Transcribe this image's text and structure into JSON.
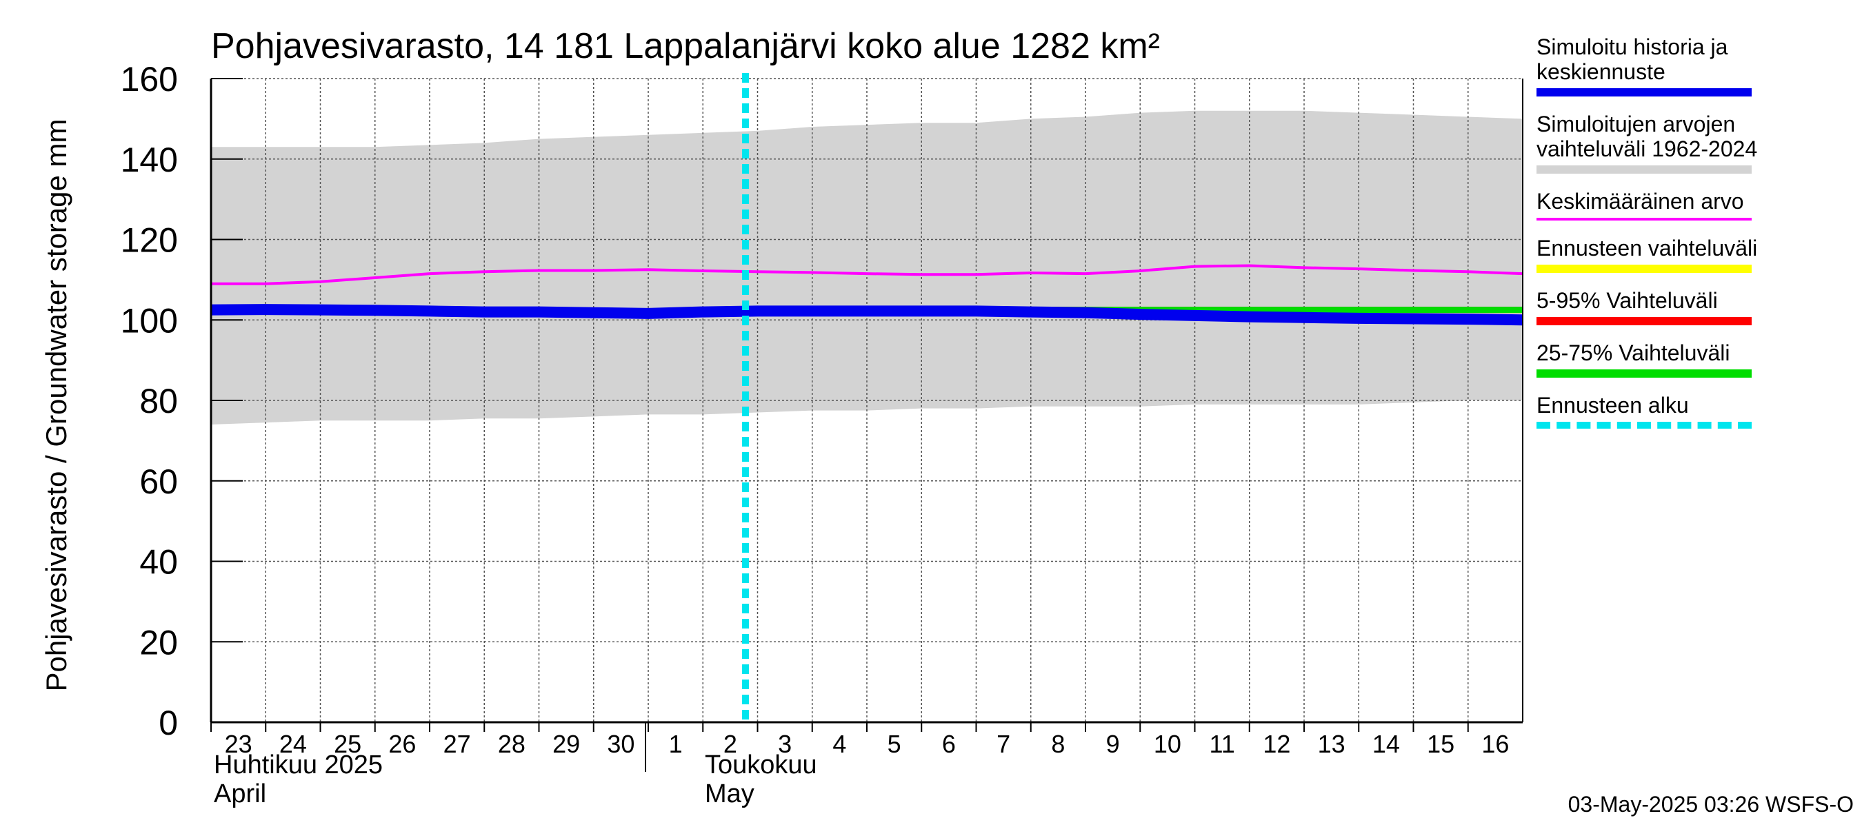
{
  "chart_data": {
    "type": "area",
    "title": "Pohjavesivarasto, 14 181 Lappalanjärvi koko alue 1282 km²",
    "ylabel": "Pohjavesivarasto / Groundwater storage   mm",
    "ylim": [
      0,
      160
    ],
    "yticks": [
      "0",
      "20",
      "40",
      "60",
      "80",
      "100",
      "120",
      "140",
      "160"
    ],
    "x": [
      "2025-04-23",
      "2025-04-24",
      "2025-04-25",
      "2025-04-26",
      "2025-04-27",
      "2025-04-28",
      "2025-04-29",
      "2025-04-30",
      "2025-05-01",
      "2025-05-02",
      "2025-05-03",
      "2025-05-04",
      "2025-05-05",
      "2025-05-06",
      "2025-05-07",
      "2025-05-08",
      "2025-05-09",
      "2025-05-10",
      "2025-05-11",
      "2025-05-12",
      "2025-05-13",
      "2025-05-14",
      "2025-05-15",
      "2025-05-16",
      "2025-05-17"
    ],
    "xticks": [
      "23",
      "24",
      "25",
      "26",
      "27",
      "28",
      "29",
      "30",
      "1",
      "2",
      "3",
      "4",
      "5",
      "6",
      "7",
      "8",
      "9",
      "10",
      "11",
      "12",
      "13",
      "14",
      "15",
      "16"
    ],
    "month_labels": [
      {
        "fi": "Huhtikuu  2025",
        "en": "April"
      },
      {
        "fi": "Toukokuu",
        "en": "May"
      }
    ],
    "forecast_start": "2025-05-03",
    "grid": true,
    "legend_placement": "right",
    "series": [
      {
        "name": "Simuloitujen arvojen\nvaihteluväli 1962-2024",
        "kind": "band",
        "color": "#d3d3d3",
        "upper": [
          143,
          143,
          143,
          143,
          143.5,
          144,
          145,
          145.5,
          146,
          146.5,
          147,
          148,
          148.5,
          149,
          149,
          150,
          150.5,
          151.5,
          152,
          152,
          152,
          151.5,
          151,
          150.5,
          150
        ],
        "lower": [
          74,
          74.5,
          75,
          75,
          75,
          75.5,
          75.5,
          76,
          76.5,
          76.5,
          77,
          77.5,
          77.5,
          78,
          78,
          78.5,
          78.5,
          78.5,
          79,
          79,
          79,
          79,
          79.5,
          80,
          80
        ]
      },
      {
        "name": "Keskimääräinen arvo",
        "kind": "line",
        "color": "#ff00ff",
        "values": [
          109,
          109,
          109.5,
          110.5,
          111.5,
          112,
          112.3,
          112.3,
          112.5,
          112.2,
          112,
          111.8,
          111.5,
          111.3,
          111.3,
          111.7,
          111.5,
          112.2,
          113.3,
          113.5,
          113,
          112.7,
          112.3,
          112,
          111.5
        ]
      },
      {
        "name": "Ennusteen vaihteluväli",
        "kind": "line",
        "color": "#ffff00",
        "from_index": 10,
        "values": [
          102.5,
          102.5,
          102.5,
          102.5,
          102.5,
          102.5,
          102.5,
          102.5,
          102.5,
          102.5,
          102.5,
          102.5,
          102.5,
          102.5,
          102.5,
          102.5,
          102.5,
          102.3,
          102,
          101.8,
          101.8,
          101.8,
          101.7,
          101.7,
          101.5
        ]
      },
      {
        "name": "5-95% Vaihteluväli",
        "kind": "line",
        "color": "#ff0000",
        "from_index": 10,
        "values": [
          102.5,
          102.5,
          102.5,
          102.5,
          102.5,
          102.5,
          102.5,
          102.5,
          102.5,
          102.5,
          102.5,
          102.5,
          102.5,
          102.5,
          102.5,
          102.5,
          102.4,
          102.2,
          102,
          101.8,
          101.5,
          101.5,
          101.5,
          101.3,
          101.2
        ]
      },
      {
        "name": "25-75% Vaihteluväli",
        "kind": "line",
        "color": "#00dd00",
        "from_index": 10,
        "values": [
          102.5,
          102.5,
          102.5,
          102.5,
          102.5,
          102.5,
          102.5,
          102.5,
          102.5,
          102.5,
          102.5,
          102.5,
          102.5,
          102.5,
          102.5,
          102.5,
          102.2,
          101.8,
          101.4,
          101,
          100.8,
          100.6,
          100.5,
          100.3,
          100.2
        ]
      },
      {
        "name": "Simuloitu historia ja\nkeskiennuste",
        "kind": "line",
        "color": "#0000ee",
        "values": [
          102.5,
          102.6,
          102.5,
          102.4,
          102.2,
          102,
          102,
          101.8,
          101.6,
          102,
          102.2,
          102.2,
          102.2,
          102.2,
          102.2,
          102,
          101.8,
          101.4,
          101.1,
          100.8,
          100.6,
          100.4,
          100.3,
          100.2,
          100
        ]
      }
    ]
  },
  "legend": [
    {
      "label": "Simuloitu historia ja\nkeskiennuste",
      "color": "#0000ee",
      "style": "solid"
    },
    {
      "label": "Simuloitujen arvojen\nvaihteluväli 1962-2024",
      "color": "#d3d3d3",
      "style": "solid"
    },
    {
      "label": "Keskimääräinen arvo",
      "color": "#ff00ff",
      "style": "thin"
    },
    {
      "label": "Ennusteen vaihteluväli",
      "color": "#ffff00",
      "style": "solid"
    },
    {
      "label": "5-95% Vaihteluväli",
      "color": "#ff0000",
      "style": "solid"
    },
    {
      "label": "25-75% Vaihteluväli",
      "color": "#00dd00",
      "style": "solid"
    },
    {
      "label": "Ennusteen alku",
      "color": "#00e5ee",
      "style": "dashed"
    }
  ],
  "footer": "03-May-2025 03:26 WSFS-O"
}
